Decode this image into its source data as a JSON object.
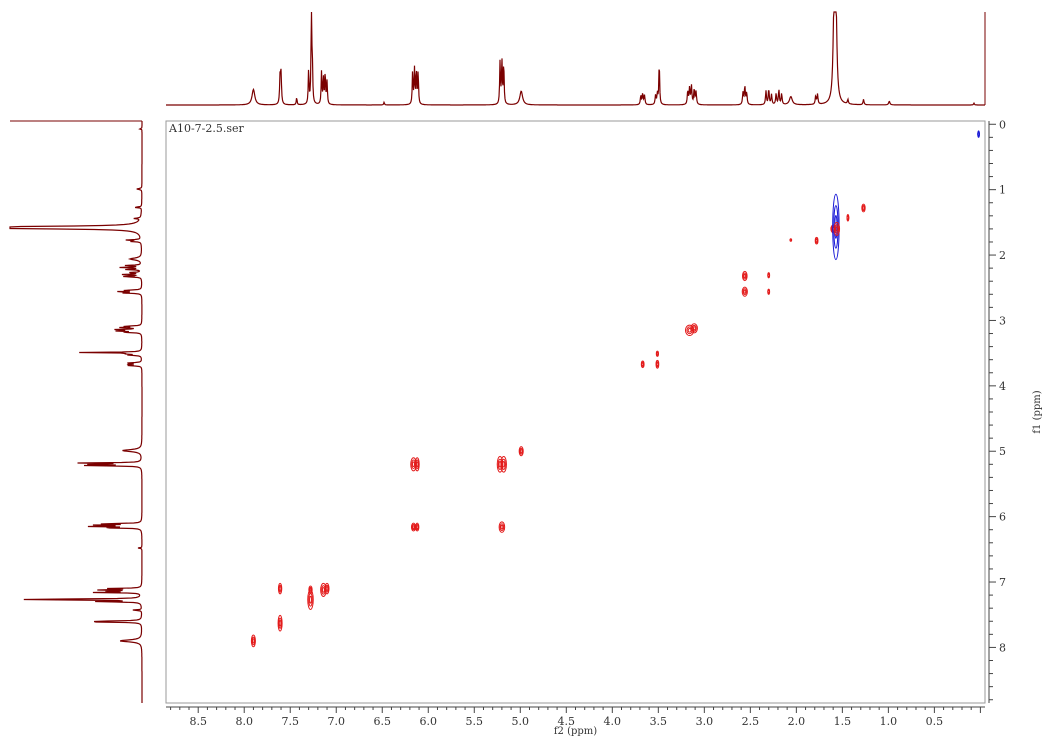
{
  "chart_data": {
    "type": "scatter",
    "title": "A10-7-2.5.ser",
    "xlabel": "f2 (ppm)",
    "ylabel": "f1 (ppm)",
    "xlim": [
      8.85,
      -0.05
    ],
    "ylim": [
      -0.05,
      8.85
    ],
    "x_ticks": [
      {
        "value": 8.5,
        "label": "8.5"
      },
      {
        "value": 8.0,
        "label": "8.0"
      },
      {
        "value": 7.5,
        "label": "7.5"
      },
      {
        "value": 7.0,
        "label": "7.0"
      },
      {
        "value": 6.5,
        "label": "6.5"
      },
      {
        "value": 6.0,
        "label": "6.0"
      },
      {
        "value": 5.5,
        "label": "5.5"
      },
      {
        "value": 5.0,
        "label": "5.0"
      },
      {
        "value": 4.5,
        "label": "4.5"
      },
      {
        "value": 4.0,
        "label": "4.0"
      },
      {
        "value": 3.5,
        "label": "3.5"
      },
      {
        "value": 3.0,
        "label": "3.0"
      },
      {
        "value": 2.5,
        "label": "2.5"
      },
      {
        "value": 2.0,
        "label": "2.0"
      },
      {
        "value": 1.5,
        "label": "1.5"
      },
      {
        "value": 1.0,
        "label": "1.0"
      },
      {
        "value": 0.5,
        "label": "0.5"
      }
    ],
    "y_ticks": [
      {
        "value": 0,
        "label": "0"
      },
      {
        "value": 1,
        "label": "1"
      },
      {
        "value": 2,
        "label": "2"
      },
      {
        "value": 3,
        "label": "3"
      },
      {
        "value": 4,
        "label": "4"
      },
      {
        "value": 5,
        "label": "5"
      },
      {
        "value": 6,
        "label": "6"
      },
      {
        "value": 7,
        "label": "7"
      },
      {
        "value": 8,
        "label": "8"
      }
    ],
    "grid": false,
    "colors": {
      "positive": "#e31b1b",
      "negative": "#1a1ad6",
      "projection": "#7a0000",
      "frame": "#9a9a9a"
    },
    "projection_peaks": [
      {
        "ppm": 7.9,
        "height": 0.17,
        "w": 0.018
      },
      {
        "ppm": 7.61,
        "height": 0.3,
        "w": 0.006
      },
      {
        "ppm": 7.6,
        "height": 0.31,
        "w": 0.006
      },
      {
        "ppm": 7.43,
        "height": 0.08,
        "w": 0.005
      },
      {
        "ppm": 7.3,
        "height": 0.38,
        "w": 0.005
      },
      {
        "ppm": 7.27,
        "height": 1.0,
        "w": 0.005
      },
      {
        "ppm": 7.26,
        "height": 0.4,
        "w": 0.005
      },
      {
        "ppm": 7.16,
        "height": 0.35,
        "w": 0.005
      },
      {
        "ppm": 7.14,
        "height": 0.3,
        "w": 0.005
      },
      {
        "ppm": 7.12,
        "height": 0.35,
        "w": 0.005
      },
      {
        "ppm": 7.1,
        "height": 0.25,
        "w": 0.005
      },
      {
        "ppm": 6.48,
        "height": 0.03,
        "w": 0.005
      },
      {
        "ppm": 6.17,
        "height": 0.36,
        "w": 0.005
      },
      {
        "ppm": 6.15,
        "height": 0.38,
        "w": 0.005
      },
      {
        "ppm": 6.13,
        "height": 0.38,
        "w": 0.005
      },
      {
        "ppm": 6.11,
        "height": 0.36,
        "w": 0.005
      },
      {
        "ppm": 5.22,
        "height": 0.46,
        "w": 0.005
      },
      {
        "ppm": 5.2,
        "height": 0.48,
        "w": 0.005
      },
      {
        "ppm": 5.18,
        "height": 0.46,
        "w": 0.005
      },
      {
        "ppm": 4.99,
        "height": 0.15,
        "w": 0.018
      },
      {
        "ppm": 3.69,
        "height": 0.1,
        "w": 0.006
      },
      {
        "ppm": 3.67,
        "height": 0.12,
        "w": 0.006
      },
      {
        "ppm": 3.65,
        "height": 0.1,
        "w": 0.006
      },
      {
        "ppm": 3.53,
        "height": 0.1,
        "w": 0.006
      },
      {
        "ppm": 3.51,
        "height": 0.12,
        "w": 0.006
      },
      {
        "ppm": 3.49,
        "height": 0.47,
        "w": 0.005
      },
      {
        "ppm": 3.18,
        "height": 0.15,
        "w": 0.006
      },
      {
        "ppm": 3.16,
        "height": 0.18,
        "w": 0.006
      },
      {
        "ppm": 3.14,
        "height": 0.2,
        "w": 0.006
      },
      {
        "ppm": 3.11,
        "height": 0.17,
        "w": 0.006
      },
      {
        "ppm": 3.09,
        "height": 0.14,
        "w": 0.006
      },
      {
        "ppm": 2.58,
        "height": 0.13,
        "w": 0.006
      },
      {
        "ppm": 2.56,
        "height": 0.2,
        "w": 0.006
      },
      {
        "ppm": 2.54,
        "height": 0.13,
        "w": 0.006
      },
      {
        "ppm": 2.33,
        "height": 0.15,
        "w": 0.006
      },
      {
        "ppm": 2.3,
        "height": 0.17,
        "w": 0.006
      },
      {
        "ppm": 2.27,
        "height": 0.11,
        "w": 0.006
      },
      {
        "ppm": 2.22,
        "height": 0.12,
        "w": 0.006
      },
      {
        "ppm": 2.19,
        "height": 0.16,
        "w": 0.006
      },
      {
        "ppm": 2.16,
        "height": 0.12,
        "w": 0.006
      },
      {
        "ppm": 2.06,
        "height": 0.09,
        "w": 0.018
      },
      {
        "ppm": 1.79,
        "height": 0.09,
        "w": 0.006
      },
      {
        "ppm": 1.77,
        "height": 0.11,
        "w": 0.006
      },
      {
        "ppm": 1.59,
        "height": 1.0,
        "w": 0.012
      },
      {
        "ppm": 1.57,
        "height": 1.0,
        "w": 0.012
      },
      {
        "ppm": 1.44,
        "height": 0.05,
        "w": 0.006
      },
      {
        "ppm": 1.27,
        "height": 0.06,
        "w": 0.006
      },
      {
        "ppm": 0.99,
        "height": 0.04,
        "w": 0.008
      },
      {
        "ppm": 0.07,
        "height": 0.02,
        "w": 0.005
      }
    ],
    "cross_peaks": [
      {
        "x": 7.9,
        "y": 7.9,
        "sign": "+",
        "rx": 0.022,
        "ry": 0.09
      },
      {
        "x": 7.61,
        "y": 7.63,
        "sign": "+",
        "rx": 0.022,
        "ry": 0.12
      },
      {
        "x": 7.61,
        "y": 7.1,
        "sign": "+",
        "rx": 0.018,
        "ry": 0.08
      },
      {
        "x": 7.28,
        "y": 7.27,
        "sign": "+",
        "rx": 0.03,
        "ry": 0.15
      },
      {
        "x": 7.28,
        "y": 7.12,
        "sign": "+",
        "rx": 0.018,
        "ry": 0.06
      },
      {
        "x": 7.14,
        "y": 7.12,
        "sign": "+",
        "rx": 0.03,
        "ry": 0.1
      },
      {
        "x": 7.1,
        "y": 7.1,
        "sign": "+",
        "rx": 0.022,
        "ry": 0.08
      },
      {
        "x": 6.16,
        "y": 5.2,
        "sign": "+",
        "rx": 0.03,
        "ry": 0.1
      },
      {
        "x": 6.12,
        "y": 5.2,
        "sign": "+",
        "rx": 0.022,
        "ry": 0.1
      },
      {
        "x": 6.16,
        "y": 6.16,
        "sign": "+",
        "rx": 0.022,
        "ry": 0.06
      },
      {
        "x": 6.12,
        "y": 6.16,
        "sign": "+",
        "rx": 0.018,
        "ry": 0.06
      },
      {
        "x": 5.22,
        "y": 5.2,
        "sign": "+",
        "rx": 0.03,
        "ry": 0.12
      },
      {
        "x": 5.18,
        "y": 5.2,
        "sign": "+",
        "rx": 0.03,
        "ry": 0.12
      },
      {
        "x": 5.2,
        "y": 6.16,
        "sign": "+",
        "rx": 0.03,
        "ry": 0.08
      },
      {
        "x": 4.99,
        "y": 5.0,
        "sign": "+",
        "rx": 0.022,
        "ry": 0.07
      },
      {
        "x": 3.67,
        "y": 3.67,
        "sign": "+",
        "rx": 0.015,
        "ry": 0.05
      },
      {
        "x": 3.51,
        "y": 3.51,
        "sign": "+",
        "rx": 0.012,
        "ry": 0.04
      },
      {
        "x": 3.51,
        "y": 3.67,
        "sign": "+",
        "rx": 0.015,
        "ry": 0.06
      },
      {
        "x": 3.16,
        "y": 3.15,
        "sign": "+",
        "rx": 0.045,
        "ry": 0.08
      },
      {
        "x": 3.11,
        "y": 3.12,
        "sign": "+",
        "rx": 0.035,
        "ry": 0.07
      },
      {
        "x": 2.56,
        "y": 2.32,
        "sign": "+",
        "rx": 0.025,
        "ry": 0.07
      },
      {
        "x": 2.56,
        "y": 2.56,
        "sign": "+",
        "rx": 0.028,
        "ry": 0.07
      },
      {
        "x": 2.3,
        "y": 2.31,
        "sign": "+",
        "rx": 0.01,
        "ry": 0.04
      },
      {
        "x": 2.3,
        "y": 2.56,
        "sign": "+",
        "rx": 0.01,
        "ry": 0.04
      },
      {
        "x": 2.06,
        "y": 1.77,
        "sign": "+",
        "rx": 0.008,
        "ry": 0.02
      },
      {
        "x": 1.78,
        "y": 1.78,
        "sign": "+",
        "rx": 0.015,
        "ry": 0.05
      },
      {
        "x": 1.6,
        "y": 1.6,
        "sign": "+",
        "rx": 0.025,
        "ry": 0.06
      },
      {
        "x": 1.57,
        "y": 1.57,
        "sign": "-",
        "rx": 0.035,
        "ry": 0.5
      },
      {
        "x": 1.56,
        "y": 1.6,
        "sign": "+",
        "rx": 0.03,
        "ry": 0.1
      },
      {
        "x": 1.44,
        "y": 1.43,
        "sign": "+",
        "rx": 0.01,
        "ry": 0.05
      },
      {
        "x": 1.27,
        "y": 1.28,
        "sign": "+",
        "rx": 0.018,
        "ry": 0.06
      },
      {
        "x": 0.02,
        "y": 0.15,
        "sign": "-",
        "rx": 0.005,
        "ry": 0.05
      }
    ]
  }
}
